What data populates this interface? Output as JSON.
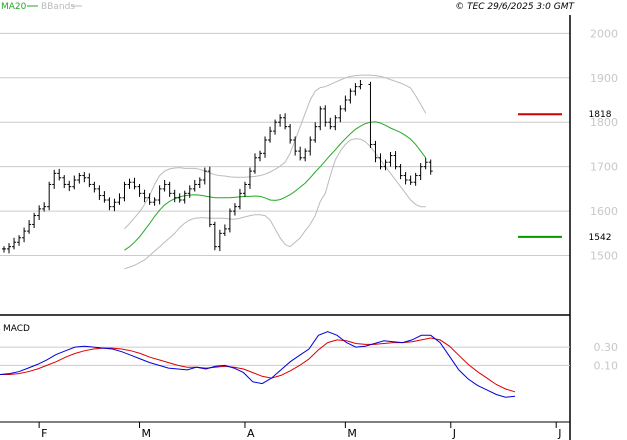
{
  "legend": {
    "ma_label": "MA20",
    "bbands_label": "BBands",
    "ma_color": "#22aa22",
    "bbands_color": "#bbbbbb"
  },
  "copyright": "© TEC 29/6/2025 3:0 GMT",
  "macd_title": "MACD",
  "chart_data": [
    {
      "type": "ohlc",
      "ylim": [
        1400,
        2030
      ],
      "yticks": [
        1500,
        1600,
        1700,
        1800,
        1900,
        2000
      ],
      "xticks": [
        {
          "label": "F",
          "day": 7
        },
        {
          "label": "M",
          "day": 27
        },
        {
          "label": "A",
          "day": 48
        },
        {
          "label": "M",
          "day": 68
        },
        {
          "label": "J",
          "day": 89
        },
        {
          "label": "J",
          "day": 110
        }
      ],
      "resistance": {
        "label": "1818",
        "value": 1818,
        "color": "#cc0000"
      },
      "support": {
        "label": "1542",
        "value": 1542,
        "color": "#009900"
      },
      "price": [
        1515,
        1520,
        1530,
        1540,
        1555,
        1570,
        1590,
        1605,
        1610,
        1660,
        1685,
        1675,
        1660,
        1655,
        1670,
        1680,
        1675,
        1660,
        1650,
        1635,
        1625,
        1610,
        1620,
        1630,
        1660,
        1665,
        1655,
        1640,
        1630,
        1620,
        1625,
        1650,
        1660,
        1640,
        1630,
        1625,
        1640,
        1650,
        1660,
        1670,
        1690,
        1570,
        1520,
        1550,
        1560,
        1600,
        1610,
        1640,
        1660,
        1690,
        1720,
        1730,
        1760,
        1780,
        1800,
        1810,
        1790,
        1760,
        1735,
        1720,
        1735,
        1760,
        1790,
        1830,
        1800,
        1790,
        1810,
        1830,
        1850,
        1870,
        1880,
        1885,
        1750,
        1720,
        1700,
        1710,
        1725,
        1700,
        1680,
        1670,
        1665,
        1680,
        1700,
        1710,
        1690
      ],
      "ma20": [
        1512,
        1520,
        1530,
        1542,
        1557,
        1572,
        1588,
        1602,
        1614,
        1622,
        1628,
        1632,
        1635,
        1636,
        1637,
        1636,
        1634,
        1632,
        1630,
        1630,
        1630,
        1630,
        1631,
        1632,
        1633,
        1633,
        1634,
        1633,
        1630,
        1625,
        1624,
        1626,
        1631,
        1637,
        1645,
        1654,
        1663,
        1675,
        1688,
        1700,
        1713,
        1726,
        1738,
        1751,
        1763,
        1774,
        1784,
        1791,
        1797,
        1800,
        1801,
        1798,
        1793,
        1787,
        1782,
        1777,
        1770,
        1762,
        1750,
        1735,
        1720
      ],
      "bb_upper": [
        1560,
        1572,
        1585,
        1598,
        1615,
        1635,
        1660,
        1680,
        1690,
        1695,
        1697,
        1698,
        1696,
        1696,
        1696,
        1694,
        1690,
        1686,
        1682,
        1680,
        1679,
        1677,
        1676,
        1676,
        1676,
        1677,
        1678,
        1680,
        1683,
        1688,
        1694,
        1701,
        1710,
        1730,
        1760,
        1790,
        1820,
        1850,
        1870,
        1878,
        1880,
        1885,
        1890,
        1895,
        1900,
        1903,
        1905,
        1906,
        1906,
        1906,
        1905,
        1903,
        1900,
        1896,
        1892,
        1888,
        1883,
        1877,
        1860,
        1840,
        1820
      ],
      "bb_lower": [
        1470,
        1474,
        1478,
        1484,
        1490,
        1500,
        1510,
        1520,
        1530,
        1540,
        1550,
        1563,
        1573,
        1580,
        1584,
        1585,
        1585,
        1584,
        1584,
        1584,
        1584,
        1582,
        1582,
        1584,
        1587,
        1590,
        1592,
        1592,
        1590,
        1580,
        1560,
        1540,
        1525,
        1520,
        1530,
        1540,
        1556,
        1570,
        1590,
        1622,
        1640,
        1680,
        1715,
        1735,
        1750,
        1760,
        1763,
        1762,
        1756,
        1745,
        1730,
        1715,
        1700,
        1685,
        1670,
        1655,
        1640,
        1625,
        1615,
        1610,
        1610
      ]
    },
    {
      "type": "line",
      "title": "MACD",
      "yticks": [
        0.3,
        0.1
      ],
      "ylim": [
        -0.5,
        0.62
      ],
      "macd": [
        0.0,
        0.01,
        0.03,
        0.07,
        0.11,
        0.16,
        0.22,
        0.26,
        0.3,
        0.31,
        0.3,
        0.29,
        0.28,
        0.25,
        0.21,
        0.17,
        0.13,
        0.1,
        0.07,
        0.06,
        0.05,
        0.08,
        0.06,
        0.09,
        0.1,
        0.07,
        0.02,
        -0.08,
        -0.1,
        -0.04,
        0.05,
        0.14,
        0.21,
        0.28,
        0.43,
        0.47,
        0.43,
        0.35,
        0.3,
        0.31,
        0.34,
        0.37,
        0.36,
        0.35,
        0.38,
        0.43,
        0.43,
        0.35,
        0.2,
        0.05,
        -0.05,
        -0.12,
        -0.17,
        -0.22,
        -0.25,
        -0.24
      ],
      "signal": [
        0.0,
        0.0,
        0.01,
        0.03,
        0.06,
        0.1,
        0.14,
        0.19,
        0.23,
        0.26,
        0.28,
        0.29,
        0.29,
        0.28,
        0.26,
        0.23,
        0.19,
        0.16,
        0.13,
        0.1,
        0.08,
        0.08,
        0.07,
        0.08,
        0.09,
        0.08,
        0.06,
        0.02,
        -0.02,
        -0.04,
        -0.01,
        0.04,
        0.1,
        0.17,
        0.27,
        0.35,
        0.38,
        0.37,
        0.34,
        0.33,
        0.33,
        0.34,
        0.35,
        0.35,
        0.36,
        0.38,
        0.4,
        0.38,
        0.31,
        0.21,
        0.11,
        0.03,
        -0.04,
        -0.11,
        -0.16,
        -0.19
      ]
    }
  ]
}
